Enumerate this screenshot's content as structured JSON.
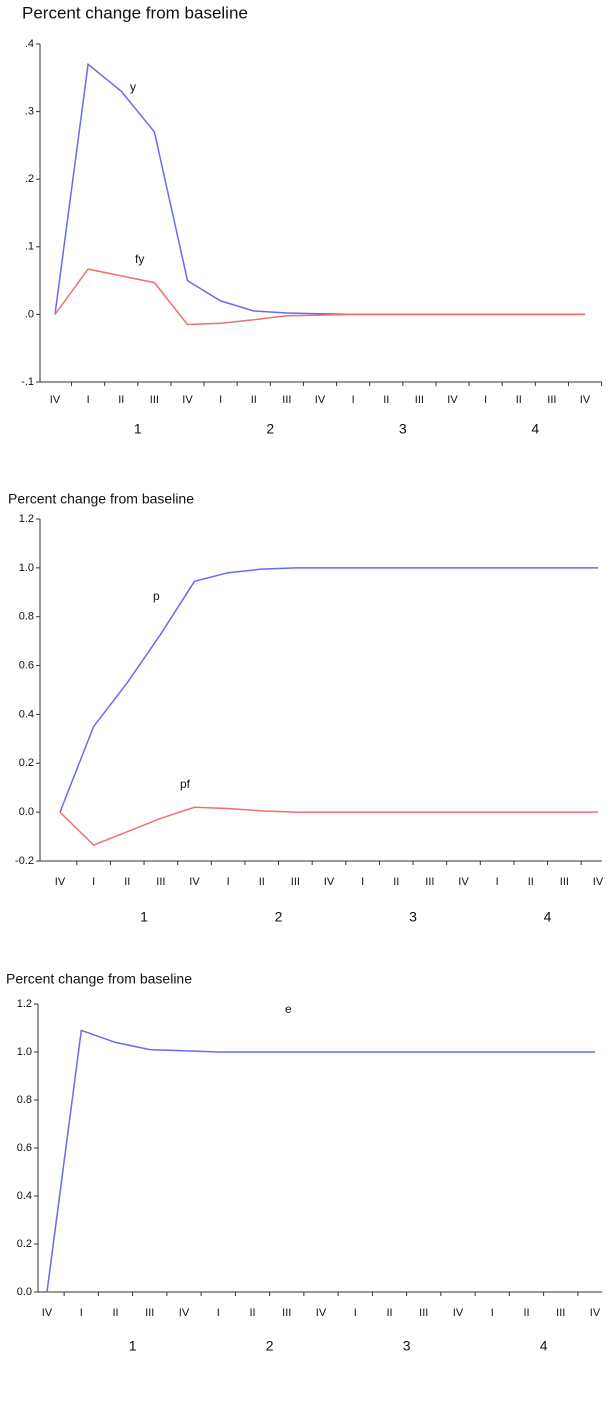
{
  "chart_data": [
    {
      "type": "line",
      "title": "Percent change from baseline",
      "categories": [
        "IV",
        "I",
        "II",
        "III",
        "IV",
        "I",
        "II",
        "III",
        "IV",
        "I",
        "II",
        "III",
        "IV",
        "I",
        "II",
        "III",
        "IV"
      ],
      "year_labels": [
        "1",
        "2",
        "3",
        "4"
      ],
      "ylim": [
        -0.1,
        0.4
      ],
      "yticks": [
        {
          "value": -0.1,
          "label": "-.1"
        },
        {
          "value": 0,
          "label": ".0"
        },
        {
          "value": 0.1,
          "label": ".1"
        },
        {
          "value": 0.2,
          "label": ".2"
        },
        {
          "value": 0.3,
          "label": ".3"
        },
        {
          "value": 0.4,
          "label": ".4"
        }
      ],
      "series": [
        {
          "name": "y",
          "color": "#6b6bf0",
          "values": [
            0,
            0.37,
            0.33,
            0.27,
            0.05,
            0.02,
            0.005,
            0.002,
            0.001,
            0,
            0,
            0,
            0,
            0,
            0,
            0,
            0
          ]
        },
        {
          "name": "fy",
          "color": "#f07070",
          "values": [
            0,
            0.067,
            0.057,
            0.047,
            -0.015,
            -0.013,
            -0.008,
            -0.002,
            -0.001,
            0,
            0,
            0,
            0,
            0,
            0,
            0,
            0
          ]
        }
      ]
    },
    {
      "type": "line",
      "title": "Percent change from baseline",
      "categories": [
        "IV",
        "I",
        "II",
        "III",
        "IV",
        "I",
        "II",
        "III",
        "IV",
        "I",
        "II",
        "III",
        "IV",
        "I",
        "II",
        "III",
        "IV"
      ],
      "year_labels": [
        "1",
        "2",
        "3",
        "4"
      ],
      "ylim": [
        -0.2,
        1.2
      ],
      "yticks": [
        -0.2,
        {
          "value": 0,
          "label": "0.0"
        },
        0.2,
        0.4,
        0.6,
        0.8,
        {
          "value": 1,
          "label": "1.0"
        },
        1.2
      ],
      "series": [
        {
          "name": "p",
          "color": "#6b6bf0",
          "values": [
            0,
            0.35,
            0.53,
            0.73,
            0.945,
            0.98,
            0.995,
            1,
            1,
            1,
            1,
            1,
            1,
            1,
            1,
            1,
            1
          ]
        },
        {
          "name": "pf",
          "color": "#f07070",
          "values": [
            0,
            -0.135,
            -0.08,
            -0.025,
            0.02,
            0.015,
            0.005,
            0,
            0,
            0,
            0,
            0,
            0,
            0,
            0,
            0,
            0
          ]
        }
      ]
    },
    {
      "type": "line",
      "title": "Percent change from baseline",
      "categories": [
        "IV",
        "I",
        "II",
        "III",
        "IV",
        "I",
        "II",
        "III",
        "IV",
        "I",
        "II",
        "III",
        "IV",
        "I",
        "II",
        "III",
        "IV"
      ],
      "year_labels": [
        "1",
        "2",
        "3",
        "4"
      ],
      "ylim": [
        0,
        1.2
      ],
      "yticks": [
        {
          "value": 0,
          "label": "0.0"
        },
        0.2,
        0.4,
        0.6,
        0.8,
        {
          "value": 1,
          "label": "1.0"
        },
        1.2
      ],
      "series": [
        {
          "name": "e",
          "color": "#6b6bf0",
          "values": [
            0,
            1.09,
            1.04,
            1.01,
            1.005,
            1,
            1,
            1,
            1,
            1,
            1,
            1,
            1,
            1,
            1,
            1,
            1
          ]
        }
      ]
    }
  ]
}
